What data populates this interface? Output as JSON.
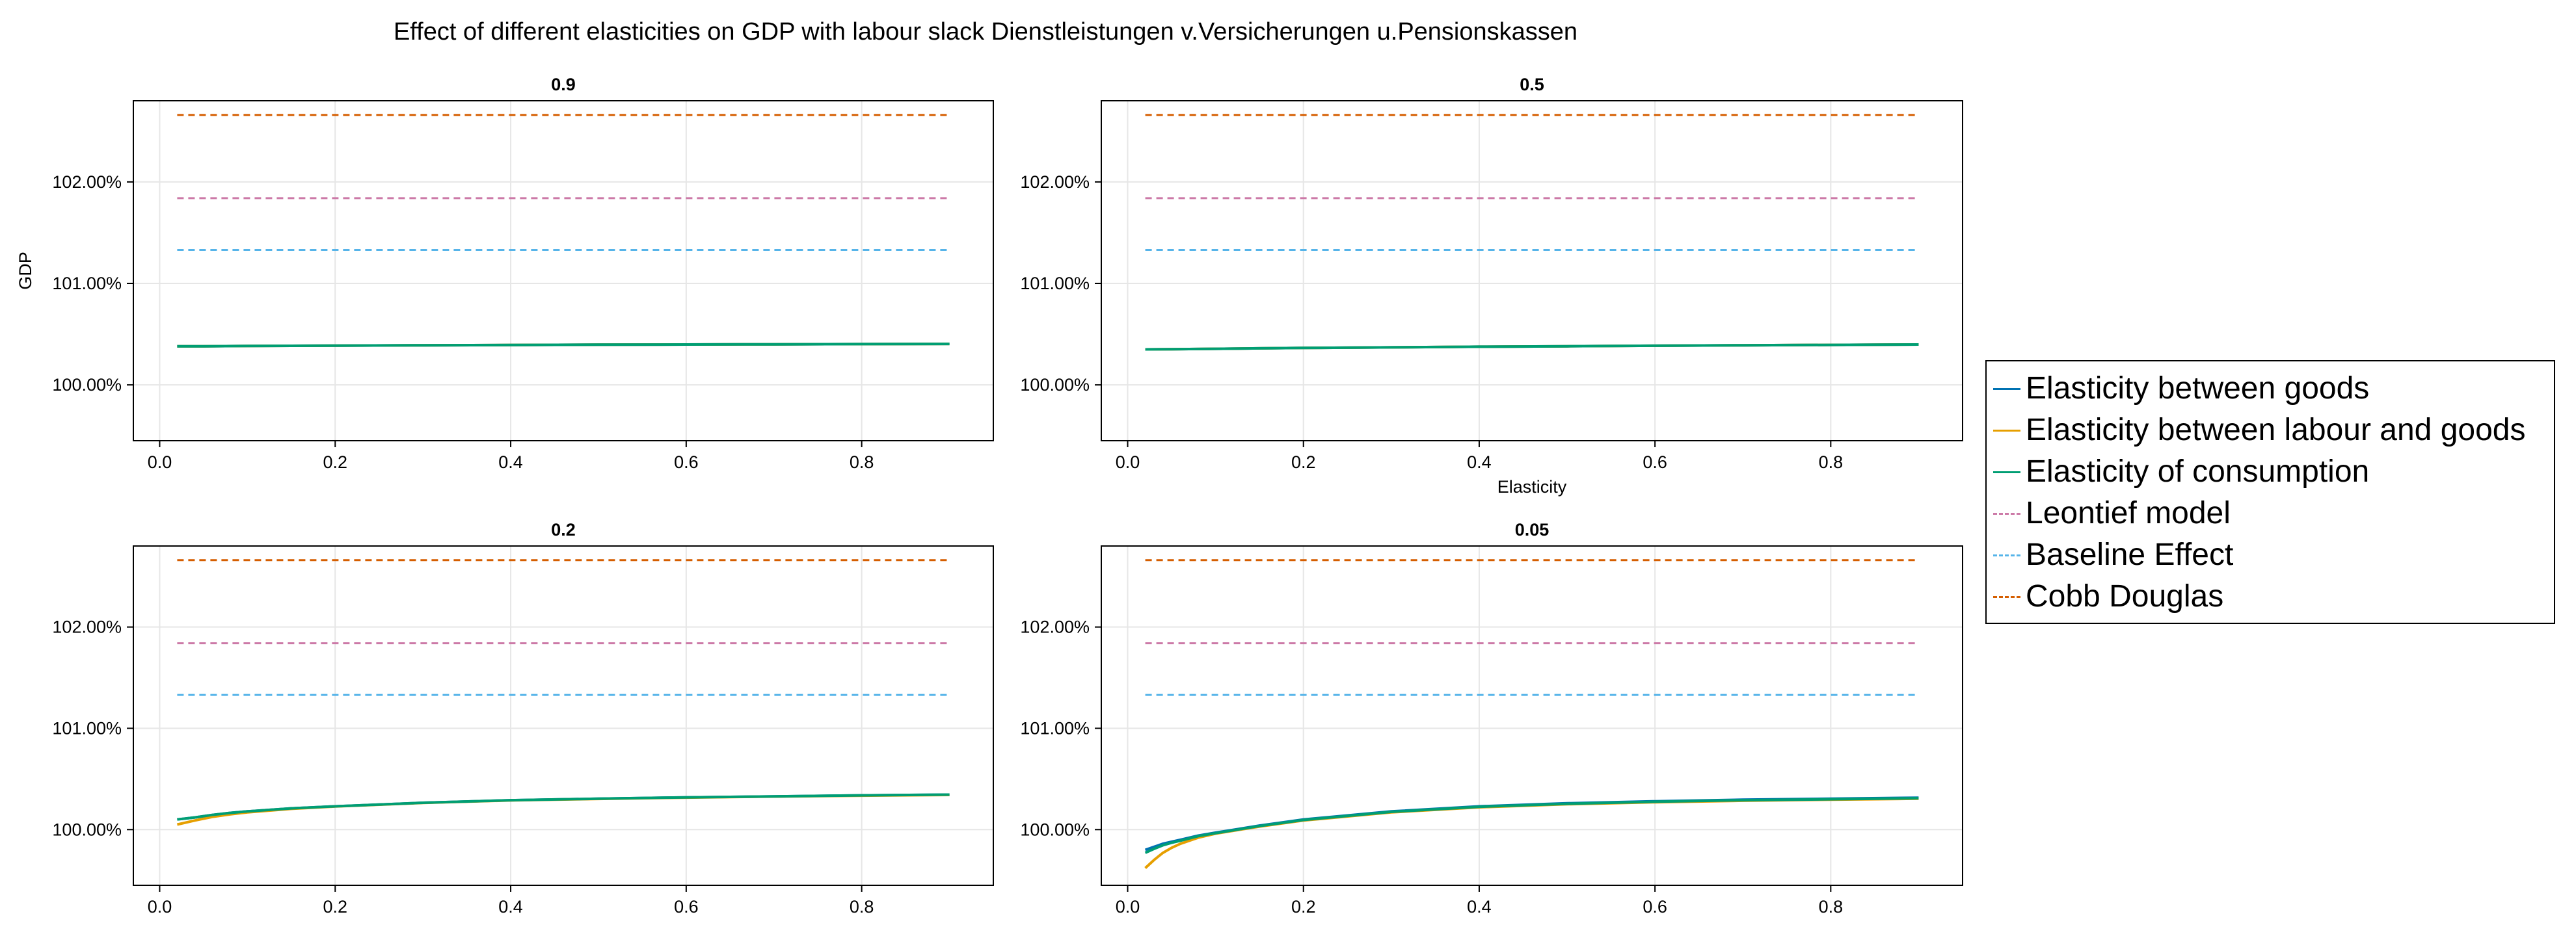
{
  "title": "Effect of different elasticities on GDP with labour slack Dienstleistungen v.Versicherungen u.Pensionskassen",
  "colors": {
    "goods": "#0072B2",
    "labour_goods": "#E69F00",
    "consumption": "#009E73",
    "leontief": "#CC79A7",
    "baseline": "#56B4E9",
    "cobb_douglas": "#D55E00",
    "grid": "#e6e6e6",
    "axis": "#000000"
  },
  "legend": {
    "placement": "right",
    "items": [
      {
        "label": "Elasticity between goods",
        "color_key": "goods",
        "style": "solid"
      },
      {
        "label": "Elasticity between labour and goods",
        "color_key": "labour_goods",
        "style": "solid"
      },
      {
        "label": "Elasticity of consumption",
        "color_key": "consumption",
        "style": "solid"
      },
      {
        "label": "Leontief model",
        "color_key": "leontief",
        "style": "dashed"
      },
      {
        "label": "Baseline Effect",
        "color_key": "baseline",
        "style": "dashed"
      },
      {
        "label": "Cobb Douglas",
        "color_key": "cobb_douglas",
        "style": "dashed"
      }
    ]
  },
  "chart_data": [
    {
      "type": "line",
      "title": "0.9",
      "xlabel": "",
      "ylabel": "GDP",
      "xlim": [
        -0.03,
        0.95
      ],
      "ylim": [
        99.45,
        102.8
      ],
      "x_ticks": [
        0.0,
        0.2,
        0.4,
        0.6,
        0.8
      ],
      "x_tick_labels": [
        "0.0",
        "0.2",
        "0.4",
        "0.6",
        "0.8"
      ],
      "y_ticks": [
        100,
        101,
        102
      ],
      "y_tick_labels": [
        "100.00%",
        "101.00%",
        "102.00%"
      ],
      "grid": true,
      "x": [
        0.02,
        0.05,
        0.1,
        0.15,
        0.2,
        0.3,
        0.4,
        0.5,
        0.6,
        0.7,
        0.8,
        0.9
      ],
      "series": [
        {
          "key": "goods",
          "style": "solid",
          "values": [
            100.38,
            100.381,
            100.383,
            100.385,
            100.387,
            100.39,
            100.393,
            100.396,
            100.398,
            100.4,
            100.402,
            100.404
          ]
        },
        {
          "key": "labour_goods",
          "style": "solid",
          "values": [
            100.38,
            100.381,
            100.383,
            100.385,
            100.387,
            100.39,
            100.393,
            100.396,
            100.398,
            100.4,
            100.402,
            100.404
          ]
        },
        {
          "key": "consumption",
          "style": "solid",
          "values": [
            100.38,
            100.381,
            100.383,
            100.385,
            100.387,
            100.39,
            100.393,
            100.396,
            100.398,
            100.4,
            100.402,
            100.404
          ]
        },
        {
          "key": "leontief",
          "style": "dashed",
          "values": [
            101.84,
            101.84,
            101.84,
            101.84,
            101.84,
            101.84,
            101.84,
            101.84,
            101.84,
            101.84,
            101.84,
            101.84
          ]
        },
        {
          "key": "baseline",
          "style": "dashed",
          "values": [
            101.33,
            101.33,
            101.33,
            101.33,
            101.33,
            101.33,
            101.33,
            101.33,
            101.33,
            101.33,
            101.33,
            101.33
          ]
        },
        {
          "key": "cobb_douglas",
          "style": "dashed",
          "values": [
            102.66,
            102.66,
            102.66,
            102.66,
            102.66,
            102.66,
            102.66,
            102.66,
            102.66,
            102.66,
            102.66,
            102.66
          ]
        }
      ]
    },
    {
      "type": "line",
      "title": "0.5",
      "xlabel": "Elasticity",
      "ylabel": "",
      "xlim": [
        -0.03,
        0.95
      ],
      "ylim": [
        99.45,
        102.8
      ],
      "x_ticks": [
        0.0,
        0.2,
        0.4,
        0.6,
        0.8
      ],
      "x_tick_labels": [
        "0.0",
        "0.2",
        "0.4",
        "0.6",
        "0.8"
      ],
      "y_ticks": [
        100,
        101,
        102
      ],
      "y_tick_labels": [
        "100.00%",
        "101.00%",
        "102.00%"
      ],
      "grid": true,
      "x": [
        0.02,
        0.05,
        0.1,
        0.15,
        0.2,
        0.3,
        0.4,
        0.5,
        0.6,
        0.7,
        0.8,
        0.9
      ],
      "series": [
        {
          "key": "goods",
          "style": "solid",
          "values": [
            100.35,
            100.352,
            100.356,
            100.36,
            100.364,
            100.37,
            100.376,
            100.381,
            100.386,
            100.39,
            100.394,
            100.398
          ]
        },
        {
          "key": "labour_goods",
          "style": "solid",
          "values": [
            100.35,
            100.352,
            100.356,
            100.36,
            100.364,
            100.37,
            100.376,
            100.381,
            100.386,
            100.39,
            100.394,
            100.398
          ]
        },
        {
          "key": "consumption",
          "style": "solid",
          "values": [
            100.35,
            100.352,
            100.356,
            100.36,
            100.364,
            100.37,
            100.376,
            100.381,
            100.386,
            100.39,
            100.394,
            100.398
          ]
        },
        {
          "key": "leontief",
          "style": "dashed",
          "values": [
            101.84,
            101.84,
            101.84,
            101.84,
            101.84,
            101.84,
            101.84,
            101.84,
            101.84,
            101.84,
            101.84,
            101.84
          ]
        },
        {
          "key": "baseline",
          "style": "dashed",
          "values": [
            101.33,
            101.33,
            101.33,
            101.33,
            101.33,
            101.33,
            101.33,
            101.33,
            101.33,
            101.33,
            101.33,
            101.33
          ]
        },
        {
          "key": "cobb_douglas",
          "style": "dashed",
          "values": [
            102.66,
            102.66,
            102.66,
            102.66,
            102.66,
            102.66,
            102.66,
            102.66,
            102.66,
            102.66,
            102.66,
            102.66
          ]
        }
      ]
    },
    {
      "type": "line",
      "title": "0.2",
      "xlabel": "",
      "ylabel": "",
      "xlim": [
        -0.03,
        0.95
      ],
      "ylim": [
        99.45,
        102.8
      ],
      "x_ticks": [
        0.0,
        0.2,
        0.4,
        0.6,
        0.8
      ],
      "x_tick_labels": [
        "0.0",
        "0.2",
        "0.4",
        "0.6",
        "0.8"
      ],
      "y_ticks": [
        100,
        101,
        102
      ],
      "y_tick_labels": [
        "100.00%",
        "101.00%",
        "102.00%"
      ],
      "grid": true,
      "x": [
        0.02,
        0.04,
        0.06,
        0.08,
        0.1,
        0.15,
        0.2,
        0.3,
        0.4,
        0.5,
        0.6,
        0.7,
        0.8,
        0.9
      ],
      "series": [
        {
          "key": "goods",
          "style": "solid",
          "values": [
            100.1,
            100.12,
            100.145,
            100.165,
            100.18,
            100.21,
            100.23,
            100.265,
            100.29,
            100.305,
            100.318,
            100.328,
            100.338,
            100.345
          ]
        },
        {
          "key": "labour_goods",
          "style": "solid",
          "values": [
            100.05,
            100.09,
            100.125,
            100.15,
            100.17,
            100.205,
            100.228,
            100.263,
            100.288,
            100.303,
            100.316,
            100.326,
            100.335,
            100.342
          ]
        },
        {
          "key": "consumption",
          "style": "solid",
          "values": [
            100.1,
            100.12,
            100.145,
            100.165,
            100.18,
            100.21,
            100.23,
            100.265,
            100.29,
            100.305,
            100.318,
            100.328,
            100.338,
            100.345
          ]
        },
        {
          "key": "leontief",
          "style": "dashed",
          "values": [
            101.84,
            101.84,
            101.84,
            101.84,
            101.84,
            101.84,
            101.84,
            101.84,
            101.84,
            101.84,
            101.84,
            101.84,
            101.84,
            101.84
          ]
        },
        {
          "key": "baseline",
          "style": "dashed",
          "values": [
            101.33,
            101.33,
            101.33,
            101.33,
            101.33,
            101.33,
            101.33,
            101.33,
            101.33,
            101.33,
            101.33,
            101.33,
            101.33,
            101.33
          ]
        },
        {
          "key": "cobb_douglas",
          "style": "dashed",
          "values": [
            102.66,
            102.66,
            102.66,
            102.66,
            102.66,
            102.66,
            102.66,
            102.66,
            102.66,
            102.66,
            102.66,
            102.66,
            102.66,
            102.66
          ]
        }
      ]
    },
    {
      "type": "line",
      "title": "0.05",
      "xlabel": "",
      "ylabel": "",
      "xlim": [
        -0.03,
        0.95
      ],
      "ylim": [
        99.45,
        102.8
      ],
      "x_ticks": [
        0.0,
        0.2,
        0.4,
        0.6,
        0.8
      ],
      "x_tick_labels": [
        "0.0",
        "0.2",
        "0.4",
        "0.6",
        "0.8"
      ],
      "y_ticks": [
        100,
        101,
        102
      ],
      "y_tick_labels": [
        "100.00%",
        "101.00%",
        "102.00%"
      ],
      "grid": true,
      "x": [
        0.02,
        0.03,
        0.04,
        0.05,
        0.06,
        0.08,
        0.1,
        0.15,
        0.2,
        0.3,
        0.4,
        0.5,
        0.6,
        0.7,
        0.8,
        0.9
      ],
      "series": [
        {
          "key": "goods",
          "style": "solid",
          "values": [
            99.8,
            99.83,
            99.86,
            99.88,
            99.9,
            99.94,
            99.97,
            100.04,
            100.1,
            100.18,
            100.23,
            100.26,
            100.28,
            100.295,
            100.305,
            100.315
          ]
        },
        {
          "key": "labour_goods",
          "style": "solid",
          "values": [
            99.62,
            99.7,
            99.77,
            99.82,
            99.86,
            99.92,
            99.96,
            100.03,
            100.09,
            100.17,
            100.22,
            100.25,
            100.27,
            100.285,
            100.295,
            100.305
          ]
        },
        {
          "key": "consumption",
          "style": "solid",
          "values": [
            99.77,
            99.81,
            99.845,
            99.87,
            99.89,
            99.935,
            99.965,
            100.035,
            100.095,
            100.175,
            100.225,
            100.255,
            100.275,
            100.29,
            100.3,
            100.31
          ]
        },
        {
          "key": "leontief",
          "style": "dashed",
          "values": [
            101.84,
            101.84,
            101.84,
            101.84,
            101.84,
            101.84,
            101.84,
            101.84,
            101.84,
            101.84,
            101.84,
            101.84,
            101.84,
            101.84,
            101.84,
            101.84
          ]
        },
        {
          "key": "baseline",
          "style": "dashed",
          "values": [
            101.33,
            101.33,
            101.33,
            101.33,
            101.33,
            101.33,
            101.33,
            101.33,
            101.33,
            101.33,
            101.33,
            101.33,
            101.33,
            101.33,
            101.33,
            101.33
          ]
        },
        {
          "key": "cobb_douglas",
          "style": "dashed",
          "values": [
            102.66,
            102.66,
            102.66,
            102.66,
            102.66,
            102.66,
            102.66,
            102.66,
            102.66,
            102.66,
            102.66,
            102.66,
            102.66,
            102.66,
            102.66,
            102.66
          ]
        }
      ]
    }
  ]
}
